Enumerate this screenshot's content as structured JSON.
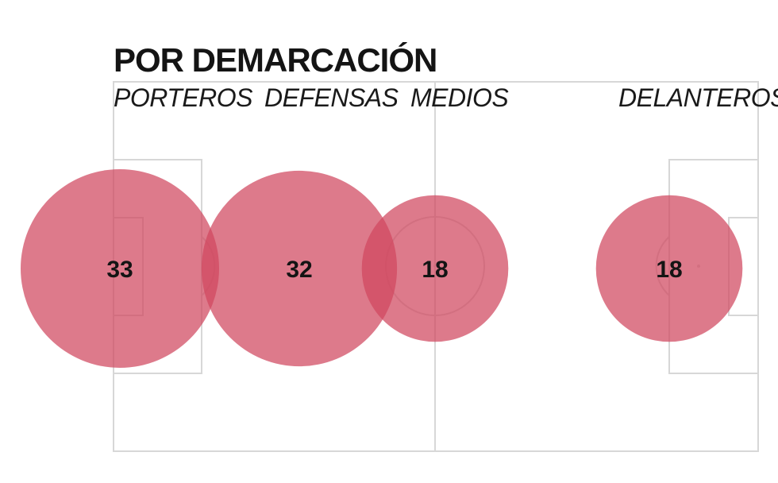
{
  "chart_data": {
    "type": "bubble",
    "title": "POR DEMARCACIÓN",
    "background": "football-pitch",
    "bubble_color": "#d0475e",
    "categories": [
      "PORTEROS",
      "DEFENSAS",
      "MEDIOS",
      "DELANTEROS"
    ],
    "values": [
      33,
      32,
      18,
      18
    ]
  }
}
